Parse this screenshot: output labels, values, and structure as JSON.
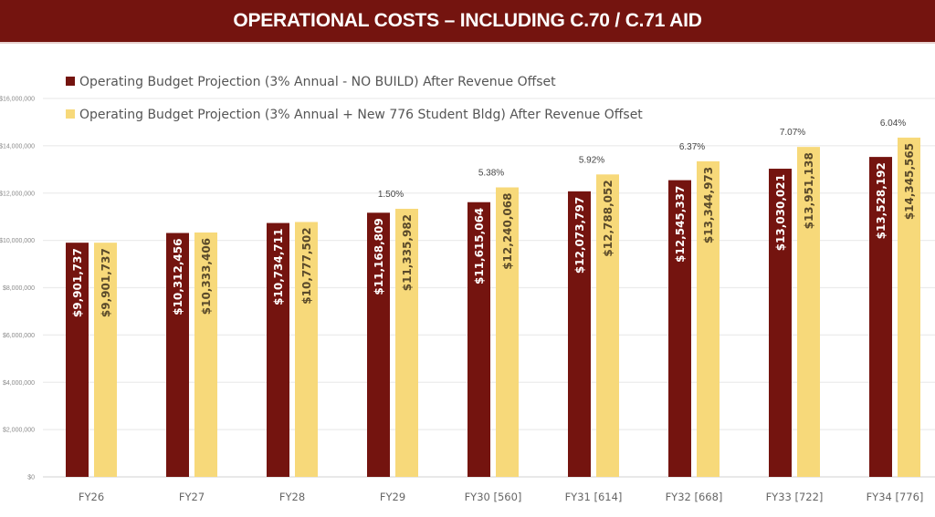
{
  "header": {
    "title": "OPERATIONAL COSTS – INCLUDING C.70 / C.71 AID"
  },
  "chart_data": {
    "type": "bar",
    "title": "OPERATIONAL COSTS – INCLUDING C.70 / C.71 AID",
    "xlabel": "",
    "ylabel": "",
    "ylim": [
      0,
      16000000
    ],
    "yticks": [
      0,
      2000000,
      4000000,
      6000000,
      8000000,
      10000000,
      12000000,
      14000000,
      16000000
    ],
    "ytick_labels": [
      "$0",
      "$2,000,000",
      "$4,000,000",
      "$6,000,000",
      "$8,000,000",
      "$10,000,000",
      "$12,000,000",
      "$14,000,000",
      "$16,000,000"
    ],
    "grid": true,
    "legend_position": "top-left",
    "categories": [
      "FY26",
      "FY27",
      "FY28",
      "FY29",
      "FY30 [560]",
      "FY31 [614]",
      "FY32 [668]",
      "FY33 [722]",
      "FY34 [776]"
    ],
    "series": [
      {
        "name": "Operating Budget Projection (3% Annual - NO BUILD) After Revenue Offset",
        "color": "#74140f",
        "values": [
          9901737,
          10312456,
          10734711,
          11168809,
          11615064,
          12073797,
          12545337,
          13030021,
          13528192
        ],
        "labels": [
          "$9,901,737",
          "$10,312,456",
          "$10,734,711",
          "$11,168,809",
          "$11,615,064",
          "$12,073,797",
          "$12,545,337",
          "$13,030,021",
          "$13,528,192"
        ]
      },
      {
        "name": "Operating Budget Projection (3% Annual + New 776 Student Bldg) After Revenue Offset",
        "color": "#f7d97a",
        "values": [
          9901737,
          10333406,
          10777502,
          11335982,
          12240068,
          12788052,
          13344973,
          13951138,
          14345565
        ],
        "labels": [
          "$9,901,737",
          "$10,333,406",
          "$10,777,502",
          "$11,335,982",
          "$12,240,068",
          "$12,788,052",
          "$13,344,973",
          "$13,951,138",
          "$14,345,565"
        ]
      }
    ],
    "annotations": [
      {
        "category": "FY29",
        "text": "1.50%"
      },
      {
        "category": "FY30 [560]",
        "text": "5.38%"
      },
      {
        "category": "FY31 [614]",
        "text": "5.92%"
      },
      {
        "category": "FY32 [668]",
        "text": "6.37%"
      },
      {
        "category": "FY33 [722]",
        "text": "7.07%"
      },
      {
        "category": "FY34 [776]",
        "text": "6.04%"
      }
    ]
  }
}
